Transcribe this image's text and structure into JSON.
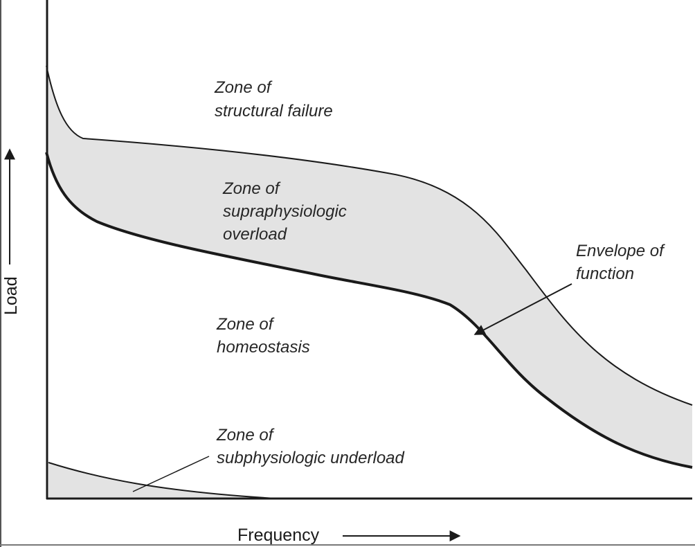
{
  "axes": {
    "x_label": "Frequency",
    "y_label": "Load"
  },
  "zones": {
    "structural_failure": [
      "Zone of",
      "structural failure"
    ],
    "supraphysiologic_overload": [
      "Zone of",
      "supraphysiologic",
      "overload"
    ],
    "homeostasis": [
      "Zone of",
      "homeostasis"
    ],
    "subphysiologic_underload": [
      "Zone of",
      "subphysiologic underload"
    ]
  },
  "envelope": [
    "Envelope of",
    "function"
  ],
  "colors": {
    "line": "#1a1a1a",
    "band_fill": "#e3e3e3",
    "background": "#ffffff"
  }
}
